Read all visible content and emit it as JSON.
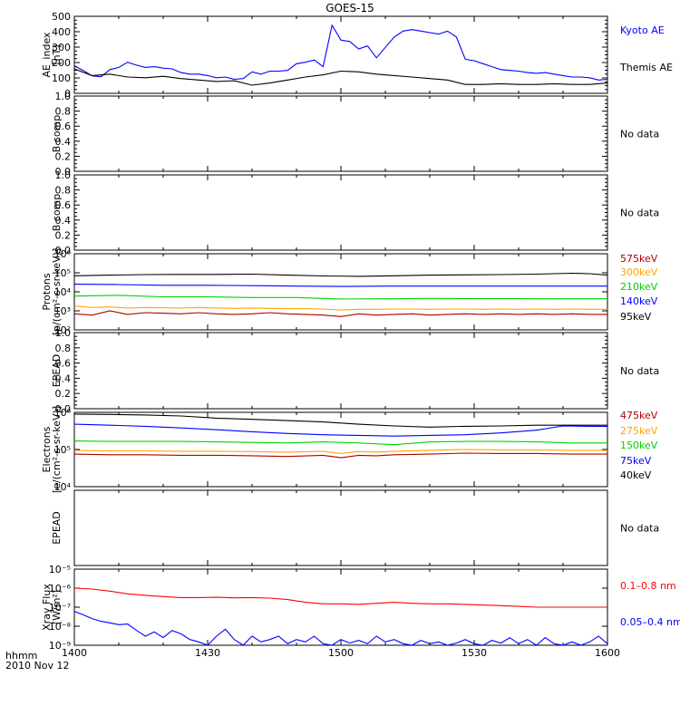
{
  "title": "GOES-15",
  "xaxis": {
    "ticks": [
      "1400",
      "1430",
      "1500",
      "1530",
      "1600"
    ],
    "range_minutes": [
      0,
      120
    ],
    "left_label_1": "hhmm",
    "left_label_2": "2010 Nov 12"
  },
  "panels": [
    {
      "id": "ae",
      "ylabel": [
        "AE_index",
        "[nT]"
      ],
      "scale": "linear",
      "ylim": [
        0,
        520
      ],
      "yticks": [
        "0",
        "100",
        "200",
        "300",
        "400",
        "500"
      ],
      "legend": [
        {
          "text": "Kyoto AE",
          "color": "#0000ff"
        },
        {
          "text": "Themis AE",
          "color": "#000000"
        }
      ],
      "no_data": ""
    },
    {
      "id": "b1",
      "ylabel": [
        "B comp"
      ],
      "scale": "linear",
      "ylim": [
        0,
        1
      ],
      "yticks": [
        "0.0",
        "0.2",
        "0.4",
        "0.6",
        "0.8",
        "1.0"
      ],
      "legend": [],
      "no_data": "No data"
    },
    {
      "id": "b2",
      "ylabel": [
        "B comp"
      ],
      "scale": "linear",
      "ylim": [
        0,
        1
      ],
      "yticks": [
        "0.0",
        "0.2",
        "0.4",
        "0.6",
        "0.8",
        "1.0"
      ],
      "legend": [],
      "no_data": "No data"
    },
    {
      "id": "protons",
      "ylabel": [
        "Protons",
        "[p/(cm²-s-sr-keV)]"
      ],
      "scale": "log",
      "ylim": [
        100,
        1000000
      ],
      "yticks": [
        "10²",
        "10³",
        "10⁴",
        "10⁵",
        "10⁶"
      ],
      "legend": [
        {
          "text": "575keV",
          "color": "#b00000"
        },
        {
          "text": "300keV",
          "color": "#ffa500"
        },
        {
          "text": "210keV",
          "color": "#00d000"
        },
        {
          "text": "140keV",
          "color": "#0000ff"
        },
        {
          "text": "95keV",
          "color": "#000000"
        }
      ],
      "no_data": ""
    },
    {
      "id": "epead1",
      "ylabel": [
        "EPEAD"
      ],
      "scale": "linear",
      "ylim": [
        0,
        1
      ],
      "yticks": [
        "0.0",
        "0.2",
        "0.4",
        "0.6",
        "0.8",
        "1.0"
      ],
      "legend": [],
      "no_data": "No data"
    },
    {
      "id": "electrons",
      "ylabel": [
        "Electrons",
        "[e/(cm²-s-sr-keV)]"
      ],
      "scale": "log",
      "ylim": [
        10000,
        1000000
      ],
      "yticks": [
        "10⁴",
        "10⁵",
        "10⁶"
      ],
      "legend": [
        {
          "text": "475keV",
          "color": "#b00000"
        },
        {
          "text": "275keV",
          "color": "#ffa500"
        },
        {
          "text": "150keV",
          "color": "#00d000"
        },
        {
          "text": "75keV",
          "color": "#0000ff"
        },
        {
          "text": "40keV",
          "color": "#000000"
        }
      ],
      "no_data": ""
    },
    {
      "id": "epead2",
      "ylabel": [
        "EPEAD"
      ],
      "scale": "linear",
      "ylim": [
        0,
        1
      ],
      "yticks": [],
      "legend": [],
      "no_data": "No data"
    },
    {
      "id": "xray",
      "ylabel": [
        "Xray Flux",
        "[W/m²]"
      ],
      "scale": "log",
      "ylim": [
        1e-09,
        1e-05
      ],
      "yticks": [
        "10⁻⁹",
        "10⁻⁸",
        "10⁻⁷",
        "10⁻⁶",
        "10⁻⁵"
      ],
      "legend": [
        {
          "text": "0.1–0.8 nm",
          "color": "#ff0000"
        },
        {
          "text": "0.05–0.4 nm",
          "color": "#0000ff"
        }
      ],
      "no_data": ""
    }
  ],
  "chart_data": {
    "type": "line",
    "title": "GOES-15",
    "x_unit": "minutes after 1400 UT, 2010 Nov 12",
    "series": {
      "ae": [
        {
          "name": "Kyoto AE",
          "color": "#0000ff",
          "x": [
            0,
            2,
            4,
            6,
            8,
            10,
            12,
            14,
            16,
            18,
            20,
            22,
            24,
            26,
            28,
            30,
            32,
            34,
            36,
            38,
            40,
            42,
            44,
            46,
            48,
            50,
            52,
            54,
            56,
            57,
            58,
            60,
            62,
            64,
            66,
            68,
            70,
            72,
            74,
            76,
            78,
            80,
            82,
            84,
            86,
            88,
            90,
            92,
            94,
            96,
            98,
            100,
            102,
            104,
            106,
            108,
            110,
            112,
            114,
            116,
            118,
            120
          ],
          "y": [
            185,
            155,
            118,
            112,
            160,
            175,
            210,
            190,
            175,
            180,
            170,
            165,
            140,
            130,
            130,
            120,
            105,
            110,
            95,
            100,
            145,
            130,
            150,
            150,
            155,
            200,
            210,
            225,
            180,
            320,
            460,
            360,
            350,
            300,
            320,
            240,
            310,
            380,
            420,
            430,
            420,
            410,
            400,
            420,
            380,
            230,
            220,
            200,
            180,
            160,
            155,
            150,
            140,
            135,
            140,
            130,
            120,
            110,
            110,
            105,
            90,
            95
          ]
        },
        {
          "name": "Themis AE",
          "color": "#000000",
          "x": [
            0,
            4,
            8,
            12,
            16,
            20,
            24,
            28,
            32,
            36,
            40,
            44,
            48,
            52,
            56,
            60,
            64,
            68,
            72,
            76,
            80,
            84,
            88,
            92,
            96,
            100,
            104,
            108,
            112,
            116,
            120
          ],
          "y": [
            165,
            120,
            130,
            110,
            105,
            115,
            100,
            90,
            80,
            85,
            55,
            70,
            90,
            110,
            125,
            150,
            145,
            130,
            120,
            110,
            100,
            90,
            60,
            60,
            65,
            60,
            60,
            65,
            60,
            60,
            70
          ]
        }
      ],
      "protons": [
        {
          "name": "575keV",
          "color": "#b00000",
          "x": [
            0,
            4,
            8,
            12,
            16,
            20,
            24,
            28,
            32,
            36,
            40,
            44,
            48,
            52,
            56,
            60,
            64,
            68,
            72,
            76,
            80,
            84,
            88,
            92,
            96,
            100,
            104,
            108,
            112,
            116,
            120
          ],
          "y": [
            700,
            600,
            1000,
            650,
            800,
            750,
            700,
            800,
            700,
            650,
            700,
            800,
            700,
            650,
            600,
            500,
            700,
            600,
            650,
            700,
            600,
            650,
            700,
            650,
            700,
            650,
            700,
            650,
            700,
            650,
            650
          ]
        },
        {
          "name": "300keV",
          "color": "#ffa500",
          "x": [
            0,
            4,
            8,
            12,
            16,
            20,
            24,
            28,
            32,
            36,
            40,
            44,
            48,
            52,
            56,
            60,
            64,
            68,
            72,
            76,
            80,
            84,
            88,
            92,
            96,
            100,
            104,
            108,
            112,
            116,
            120
          ],
          "y": [
            1800,
            1500,
            1600,
            1400,
            1500,
            1450,
            1400,
            1500,
            1400,
            1350,
            1400,
            1350,
            1300,
            1300,
            1250,
            1100,
            1200,
            1200,
            1250,
            1250,
            1200,
            1250,
            1250,
            1200,
            1250,
            1200,
            1250,
            1200,
            1250,
            1200,
            1200
          ]
        },
        {
          "name": "210keV",
          "color": "#00d000",
          "x": [
            0,
            10,
            20,
            30,
            40,
            50,
            60,
            70,
            80,
            90,
            100,
            110,
            120
          ],
          "y": [
            6000,
            6500,
            5500,
            5500,
            5000,
            5000,
            4200,
            4300,
            4500,
            4400,
            4400,
            4300,
            4300
          ]
        },
        {
          "name": "140keV",
          "color": "#0000ff",
          "x": [
            0,
            10,
            20,
            30,
            40,
            50,
            60,
            70,
            80,
            90,
            100,
            110,
            120
          ],
          "y": [
            25000,
            24000,
            22000,
            22000,
            21000,
            20000,
            19000,
            20000,
            20000,
            20000,
            20000,
            20000,
            20000
          ]
        },
        {
          "name": "95keV",
          "color": "#000000",
          "x": [
            0,
            8,
            16,
            24,
            32,
            40,
            48,
            56,
            64,
            72,
            80,
            88,
            96,
            104,
            112,
            116,
            120
          ],
          "y": [
            70000,
            75000,
            80000,
            82000,
            82000,
            85000,
            75000,
            68000,
            65000,
            70000,
            75000,
            78000,
            80000,
            85000,
            95000,
            90000,
            75000
          ]
        }
      ],
      "electrons": [
        {
          "name": "475keV",
          "color": "#b00000",
          "x": [
            0,
            8,
            16,
            24,
            32,
            40,
            48,
            56,
            60,
            64,
            68,
            72,
            80,
            88,
            96,
            104,
            112,
            120
          ],
          "y": [
            75000,
            72000,
            72000,
            70000,
            70000,
            68000,
            65000,
            70000,
            60000,
            70000,
            68000,
            72000,
            75000,
            80000,
            78000,
            78000,
            75000,
            75000
          ]
        },
        {
          "name": "275keV",
          "color": "#ffa500",
          "x": [
            0,
            8,
            16,
            24,
            32,
            40,
            48,
            56,
            60,
            64,
            68,
            72,
            80,
            88,
            96,
            104,
            112,
            120
          ],
          "y": [
            95000,
            92000,
            92000,
            90000,
            90000,
            88000,
            85000,
            90000,
            78000,
            88000,
            85000,
            90000,
            95000,
            100000,
            98000,
            98000,
            95000,
            95000
          ]
        },
        {
          "name": "150keV",
          "color": "#00d000",
          "x": [
            0,
            8,
            16,
            24,
            32,
            40,
            48,
            56,
            64,
            72,
            80,
            88,
            96,
            104,
            112,
            120
          ],
          "y": [
            170000,
            165000,
            165000,
            165000,
            160000,
            155000,
            150000,
            160000,
            150000,
            135000,
            160000,
            165000,
            165000,
            160000,
            150000,
            150000
          ]
        },
        {
          "name": "75keV",
          "color": "#0000ff",
          "x": [
            0,
            8,
            16,
            24,
            32,
            40,
            48,
            56,
            64,
            72,
            80,
            88,
            96,
            104,
            110,
            116,
            120
          ],
          "y": [
            480000,
            450000,
            420000,
            380000,
            340000,
            300000,
            270000,
            250000,
            240000,
            230000,
            240000,
            250000,
            280000,
            330000,
            430000,
            420000,
            420000
          ]
        },
        {
          "name": "40keV",
          "color": "#000000",
          "x": [
            0,
            8,
            16,
            24,
            32,
            40,
            48,
            56,
            64,
            72,
            80,
            88,
            96,
            104,
            112,
            120
          ],
          "y": [
            900000,
            880000,
            850000,
            800000,
            700000,
            650000,
            600000,
            550000,
            480000,
            430000,
            400000,
            420000,
            430000,
            450000,
            450000,
            450000
          ]
        }
      ],
      "xray": [
        {
          "name": "0.1–0.8 nm",
          "color": "#ff0000",
          "x": [
            0,
            4,
            8,
            12,
            16,
            20,
            24,
            28,
            32,
            36,
            40,
            44,
            48,
            52,
            56,
            60,
            64,
            68,
            72,
            76,
            80,
            84,
            88,
            92,
            96,
            100,
            104,
            108,
            112,
            116,
            120
          ],
          "y": [
            1e-06,
            9e-07,
            7e-07,
            5e-07,
            4.2e-07,
            3.6e-07,
            3.2e-07,
            3.2e-07,
            3.3e-07,
            3.1e-07,
            3.2e-07,
            3e-07,
            2.5e-07,
            1.8e-07,
            1.5e-07,
            1.5e-07,
            1.4e-07,
            1.6e-07,
            1.8e-07,
            1.6e-07,
            1.5e-07,
            1.5e-07,
            1.4e-07,
            1.3e-07,
            1.2e-07,
            1.1e-07,
            1e-07,
            1e-07,
            1e-07,
            1e-07,
            1e-07
          ]
        },
        {
          "name": "0.05–0.4 nm",
          "color": "#0000ff",
          "x": [
            0,
            2,
            4,
            6,
            8,
            10,
            12,
            14,
            16,
            18,
            20,
            22,
            24,
            26,
            28,
            30,
            32,
            34,
            36,
            38,
            40,
            42,
            44,
            46,
            48,
            50,
            52,
            54,
            56,
            58,
            60,
            62,
            64,
            66,
            68,
            70,
            72,
            74,
            76,
            78,
            80,
            82,
            84,
            86,
            88,
            90,
            92,
            94,
            96,
            98,
            100,
            102,
            104,
            106,
            108,
            110,
            112,
            114,
            116,
            118,
            120
          ],
          "y": [
            6e-08,
            4e-08,
            2.5e-08,
            1.8e-08,
            1.5e-08,
            1.2e-08,
            1.3e-08,
            6e-09,
            3e-09,
            5e-09,
            2.5e-09,
            6e-09,
            4e-09,
            2e-09,
            1.5e-09,
            1e-09,
            3e-09,
            7e-09,
            2e-09,
            1e-09,
            3e-09,
            1.5e-09,
            2e-09,
            3e-09,
            1.2e-09,
            2e-09,
            1.5e-09,
            3e-09,
            1.2e-09,
            1e-09,
            2e-09,
            1.3e-09,
            1.8e-09,
            1.2e-09,
            3e-09,
            1.5e-09,
            2e-09,
            1.2e-09,
            1e-09,
            1.8e-09,
            1.2e-09,
            1.5e-09,
            1e-09,
            1.3e-09,
            2e-09,
            1.2e-09,
            1e-09,
            1.8e-09,
            1.3e-09,
            2.5e-09,
            1.2e-09,
            2e-09,
            1e-09,
            2.5e-09,
            1.2e-09,
            1e-09,
            1.5e-09,
            1e-09,
            1.5e-09,
            3e-09,
            1.2e-09
          ]
        }
      ]
    }
  }
}
